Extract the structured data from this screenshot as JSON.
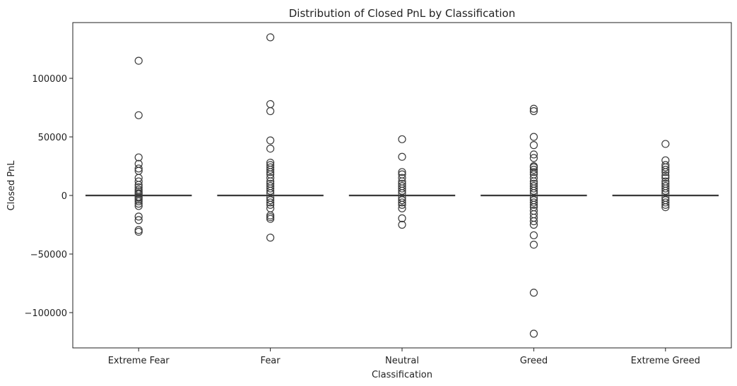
{
  "chart_data": {
    "type": "box",
    "title": "Distribution of Closed PnL by Classification",
    "xlabel": "Classification",
    "ylabel": "Closed PnL",
    "ylim": [
      -130000,
      150000
    ],
    "yticks": [
      -100000,
      -50000,
      0,
      50000,
      100000
    ],
    "ytick_labels": [
      "−100000",
      "−50000",
      "0",
      "50000",
      "100000"
    ],
    "grid": false,
    "legend": "none",
    "box_color": "#3b3b3b",
    "categories": [
      "Extreme Fear",
      "Fear",
      "Neutral",
      "Greed",
      "Extreme Greed"
    ],
    "series": [
      {
        "category": "Extreme Fear",
        "q1": 0,
        "median": 0,
        "q3": 0,
        "whisker_low": 0,
        "whisker_high": 0,
        "outliers": [
          115000,
          68500,
          32500,
          27000,
          23000,
          21000,
          15000,
          12000,
          9000,
          7000,
          5000,
          3500,
          2000,
          1000,
          -1000,
          -2000,
          -3500,
          -5000,
          -7000,
          -9000,
          -18000,
          -21000,
          -29500,
          -31000
        ]
      },
      {
        "category": "Fear",
        "q1": 0,
        "median": 0,
        "q3": 0,
        "whisker_low": 0,
        "whisker_high": 0,
        "outliers": [
          135000,
          78000,
          72000,
          47000,
          40000,
          28000,
          26000,
          24000,
          22000,
          20000,
          18000,
          15000,
          12000,
          10000,
          8000,
          6000,
          4000,
          2000,
          -2000,
          -4000,
          -6000,
          -8000,
          -11000,
          -17000,
          -18500,
          -20000,
          -36000
        ]
      },
      {
        "category": "Neutral",
        "q1": 0,
        "median": 0,
        "q3": 0,
        "whisker_low": 0,
        "whisker_high": 0,
        "outliers": [
          48000,
          33000,
          20000,
          18000,
          15000,
          12000,
          10000,
          8000,
          6000,
          4000,
          2000,
          -2000,
          -4000,
          -6000,
          -8000,
          -11000,
          -19500,
          -25000
        ]
      },
      {
        "category": "Greed",
        "q1": 0,
        "median": 0,
        "q3": 0,
        "whisker_low": 0,
        "whisker_high": 0,
        "outliers": [
          74000,
          72000,
          50000,
          43000,
          35000,
          32000,
          25000,
          24000,
          22000,
          20000,
          18000,
          15000,
          12000,
          10000,
          8000,
          6000,
          4000,
          2000,
          -2000,
          -4000,
          -6000,
          -8000,
          -10000,
          -13000,
          -16000,
          -19000,
          -22000,
          -25000,
          -34000,
          -42000,
          -83000,
          -118000
        ]
      },
      {
        "category": "Extreme Greed",
        "q1": 0,
        "median": 0,
        "q3": 0,
        "whisker_low": 0,
        "whisker_high": 0,
        "outliers": [
          44000,
          30000,
          26000,
          24000,
          22000,
          20000,
          17000,
          15000,
          12000,
          10000,
          8000,
          6000,
          4000,
          2000,
          -2000,
          -4000,
          -6000,
          -8000,
          -10000
        ]
      }
    ]
  }
}
